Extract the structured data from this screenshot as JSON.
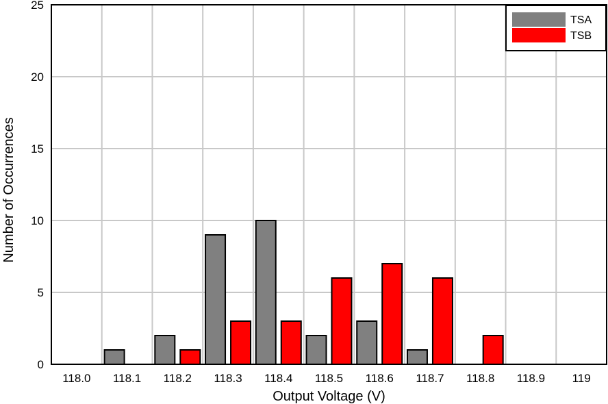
{
  "chart_data": {
    "type": "bar",
    "xlabel": "Output Voltage (V)",
    "ylabel": "Number of Occurrences",
    "categories": [
      "118.0",
      "118.1",
      "118.2",
      "118.3",
      "118.4",
      "118.5",
      "118.6",
      "118.7",
      "118.8",
      "118.9",
      "119"
    ],
    "ylim": [
      0,
      25
    ],
    "yticks": [
      "0",
      "5",
      "10",
      "15",
      "20",
      "25"
    ],
    "grid": true,
    "legend_position": "top-right",
    "series": [
      {
        "name": "TSA",
        "color": "#808080",
        "values": [
          0,
          1,
          2,
          9,
          10,
          2,
          3,
          1,
          0,
          0,
          0
        ]
      },
      {
        "name": "TSB",
        "color": "#ff0000",
        "values": [
          0,
          0,
          1,
          3,
          3,
          6,
          7,
          6,
          2,
          0,
          0
        ]
      }
    ]
  }
}
